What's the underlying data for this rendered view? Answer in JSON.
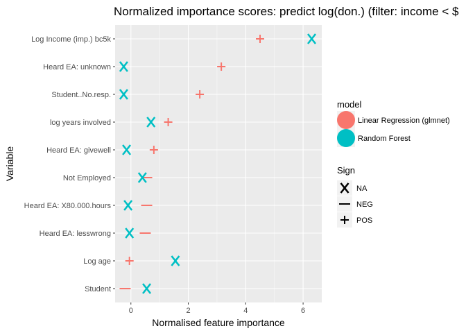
{
  "chart_data": {
    "type": "scatter",
    "title": "Normalized importance scores: predict log(don.) (filter: income < $",
    "xlabel": "Normalised feature importance",
    "ylabel": "Variable",
    "xlim": [
      -0.55,
      6.65
    ],
    "xticks": [
      0,
      2,
      4,
      6
    ],
    "xtick_labels": [
      "0",
      "2",
      "4",
      "6"
    ],
    "categories": [
      "Log Income (imp.) bc5k",
      "Heard EA: unknown",
      "Student..No.resp.",
      "log years involved",
      "Heard EA: givewell",
      "Not Employed",
      "Heard EA: X80.000.hours",
      "Heard EA: lesswrong",
      "Log age",
      "Student"
    ],
    "series": [
      {
        "name": "Linear Regression (glmnet)",
        "color": "#F8766D",
        "points": [
          {
            "variable": "Log Income (imp.) bc5k",
            "x": 4.5,
            "sign": "POS"
          },
          {
            "variable": "Heard EA: unknown",
            "x": 3.15,
            "sign": "POS"
          },
          {
            "variable": "Student..No.resp.",
            "x": 2.4,
            "sign": "POS"
          },
          {
            "variable": "log years involved",
            "x": 1.3,
            "sign": "POS"
          },
          {
            "variable": "Heard EA: givewell",
            "x": 0.8,
            "sign": "POS"
          },
          {
            "variable": "Not Employed",
            "x": 0.55,
            "sign": "NEG"
          },
          {
            "variable": "Heard EA: X80.000.hours",
            "x": 0.55,
            "sign": "NEG"
          },
          {
            "variable": "Heard EA: lesswrong",
            "x": 0.5,
            "sign": "NEG"
          },
          {
            "variable": "Log age",
            "x": -0.05,
            "sign": "POS"
          },
          {
            "variable": "Student",
            "x": -0.2,
            "sign": "NEG"
          }
        ]
      },
      {
        "name": "Random Forest",
        "color": "#00BFC4",
        "points": [
          {
            "variable": "Log Income (imp.) bc5k",
            "x": 6.3,
            "sign": "NA"
          },
          {
            "variable": "Heard EA: unknown",
            "x": -0.25,
            "sign": "NA"
          },
          {
            "variable": "Student..No.resp.",
            "x": -0.25,
            "sign": "NA"
          },
          {
            "variable": "log years involved",
            "x": 0.7,
            "sign": "NA"
          },
          {
            "variable": "Heard EA: givewell",
            "x": -0.15,
            "sign": "NA"
          },
          {
            "variable": "Not Employed",
            "x": 0.4,
            "sign": "NA"
          },
          {
            "variable": "Heard EA: X80.000.hours",
            "x": -0.1,
            "sign": "NA"
          },
          {
            "variable": "Heard EA: lesswrong",
            "x": -0.05,
            "sign": "NA"
          },
          {
            "variable": "Log age",
            "x": 1.55,
            "sign": "NA"
          },
          {
            "variable": "Student",
            "x": 0.55,
            "sign": "NA"
          }
        ]
      }
    ],
    "legend": {
      "model_title": "model",
      "model_items": [
        "Linear Regression (glmnet)",
        "Random Forest"
      ],
      "sign_title": "Sign",
      "sign_items": [
        {
          "label": "NA",
          "glyph": "X"
        },
        {
          "label": "NEG",
          "glyph": "—"
        },
        {
          "label": "POS",
          "glyph": "+"
        }
      ],
      "position": "right"
    },
    "grid": true,
    "panel_background": "#EBEBEB",
    "grid_color": "#FFFFFF"
  }
}
